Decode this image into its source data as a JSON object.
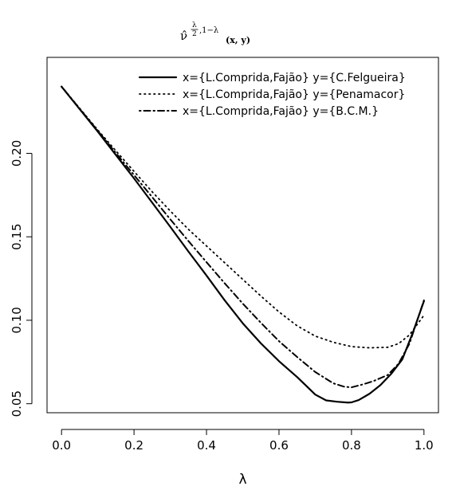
{
  "chart_data": {
    "type": "line",
    "title": {
      "base": "ν̂",
      "sup_num": "λ",
      "sup_den": "2",
      "sup_rest": ",1−λ",
      "sub": "(x, y)"
    },
    "xlabel": "λ",
    "ylabel": "",
    "xlim": [
      -0.04,
      1.04
    ],
    "ylim": [
      0.0446,
      0.2575
    ],
    "xticks": [
      0.0,
      0.2,
      0.4,
      0.6,
      0.8,
      1.0
    ],
    "xtick_labels": [
      "0.0",
      "0.2",
      "0.4",
      "0.6",
      "0.8",
      "1.0"
    ],
    "yticks": [
      0.05,
      0.1,
      0.15,
      0.2
    ],
    "ytick_labels": [
      "0.05",
      "0.10",
      "0.15",
      "0.20"
    ],
    "grid": false,
    "legend_position": "top-right",
    "series": [
      {
        "name": "x={L.Comprida,Fajão} y={C.Felgueira}",
        "style": "solid",
        "color": "#000000",
        "x": [
          0.0,
          0.05,
          0.1,
          0.15,
          0.2,
          0.25,
          0.3,
          0.35,
          0.4,
          0.45,
          0.5,
          0.55,
          0.6,
          0.65,
          0.7,
          0.73,
          0.76,
          0.79,
          0.8,
          0.82,
          0.85,
          0.88,
          0.91,
          0.94,
          0.97,
          1.0
        ],
        "y": [
          0.24,
          0.2265,
          0.213,
          0.199,
          0.185,
          0.1705,
          0.156,
          0.1412,
          0.1268,
          0.112,
          0.0982,
          0.0862,
          0.0755,
          0.066,
          0.0555,
          0.052,
          0.0512,
          0.0507,
          0.0508,
          0.0522,
          0.056,
          0.0612,
          0.068,
          0.0765,
          0.093,
          0.1115
        ]
      },
      {
        "name": "x={L.Comprida,Fajão} y={Penamacor}",
        "style": "dotted",
        "color": "#000000",
        "x": [
          0.0,
          0.05,
          0.1,
          0.15,
          0.2,
          0.25,
          0.3,
          0.35,
          0.4,
          0.45,
          0.5,
          0.55,
          0.6,
          0.65,
          0.7,
          0.75,
          0.8,
          0.85,
          0.9,
          0.93,
          0.96,
          1.0
        ],
        "y": [
          0.24,
          0.227,
          0.214,
          0.2015,
          0.1892,
          0.177,
          0.1655,
          0.1545,
          0.1445,
          0.1345,
          0.1245,
          0.1145,
          0.105,
          0.0967,
          0.0905,
          0.0868,
          0.0842,
          0.0835,
          0.0838,
          0.086,
          0.0912,
          0.103
        ]
      },
      {
        "name": "x={L.Comprida,Fajão} y={B.C.M.}",
        "style": "dotdash",
        "color": "#000000",
        "x": [
          0.0,
          0.05,
          0.1,
          0.15,
          0.2,
          0.25,
          0.3,
          0.35,
          0.4,
          0.45,
          0.5,
          0.55,
          0.6,
          0.65,
          0.7,
          0.75,
          0.78,
          0.8,
          0.83,
          0.86,
          0.9,
          0.93,
          0.96,
          1.0
        ],
        "y": [
          0.24,
          0.2268,
          0.2135,
          0.2002,
          0.187,
          0.1738,
          0.1605,
          0.1475,
          0.1348,
          0.1222,
          0.11,
          0.0985,
          0.0875,
          0.078,
          0.069,
          0.0622,
          0.0602,
          0.0598,
          0.0615,
          0.0635,
          0.0672,
          0.074,
          0.086,
          0.112
        ]
      }
    ]
  }
}
